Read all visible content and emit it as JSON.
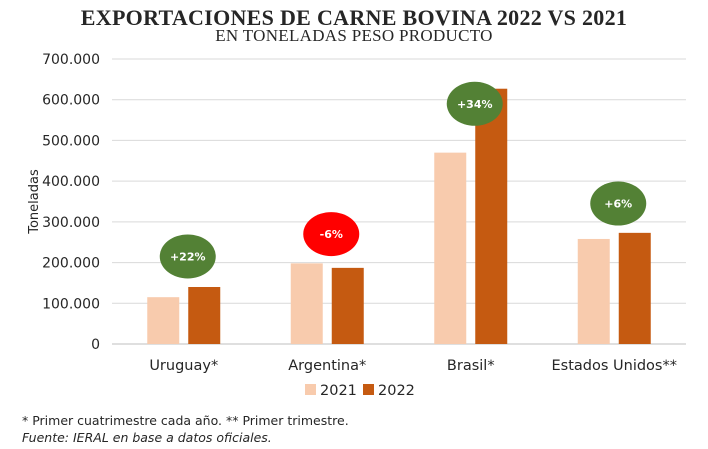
{
  "title": "Exportaciones de carne bovina 2022 vs 2021",
  "subtitle": "en toneladas peso producto",
  "chart_data": {
    "type": "bar",
    "title": "Exportaciones de carne bovina 2022 vs 2021",
    "subtitle": "en toneladas peso producto",
    "xlabel": "",
    "ylabel": "Toneladas",
    "ylim": [
      0,
      700000
    ],
    "yticks": [
      0,
      100000,
      200000,
      300000,
      400000,
      500000,
      600000,
      700000
    ],
    "ytick_labels": [
      "0",
      "100.000",
      "200.000",
      "300.000",
      "400.000",
      "500.000",
      "600.000",
      "700.000"
    ],
    "grid": true,
    "legend_position": "bottom",
    "categories": [
      "Uruguay*",
      "Argentina*",
      "Brasil*",
      "Estados Unidos**"
    ],
    "series": [
      {
        "name": "2021",
        "color": "#f8cbad",
        "values": [
          115000,
          198000,
          470000,
          258000
        ]
      },
      {
        "name": "2022",
        "color": "#c55a11",
        "values": [
          140000,
          187000,
          627000,
          273000
        ]
      }
    ],
    "annotations": [
      {
        "category": "Uruguay*",
        "label": "+22%",
        "color": "#538135",
        "value": 215000
      },
      {
        "category": "Argentina*",
        "label": "-6%",
        "color": "#ff0000",
        "value": 270000
      },
      {
        "category": "Brasil*",
        "label": "+34%",
        "color": "#538135",
        "value": 590000
      },
      {
        "category": "Estados Unidos**",
        "label": "+6%",
        "color": "#538135",
        "value": 345000
      }
    ]
  },
  "footnotes": {
    "note": "* Primer cuatrimestre cada año. ** Primer trimestre.",
    "source": "Fuente: IERAL en base a datos oficiales."
  }
}
